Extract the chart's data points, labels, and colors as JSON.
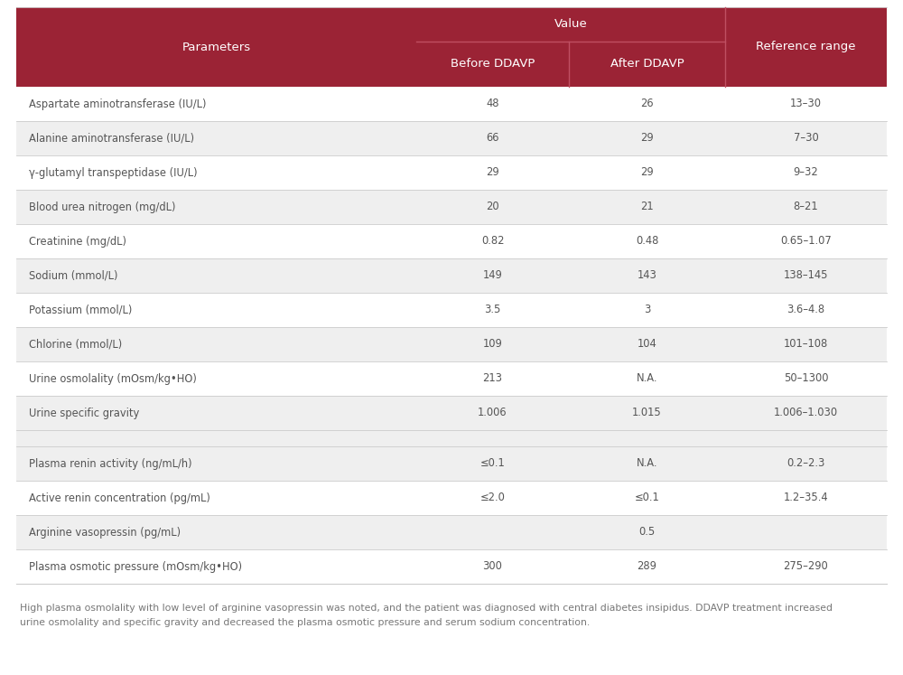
{
  "header_bg": "#9b2335",
  "header_text_color": "#ffffff",
  "row_bg_light": "#efefef",
  "row_bg_white": "#ffffff",
  "separator_color": "#cccccc",
  "text_color": "#555555",
  "footnote_color": "#777777",
  "col1_header": "Parameters",
  "col_value_header": "Value",
  "col2_header": "Before DDAVP",
  "col3_header": "After DDAVP",
  "col4_header": "Reference range",
  "rows": [
    {
      "param": "Aspartate aminotransferase (IU/L)",
      "before": "48",
      "after": "26",
      "ref": "13–30",
      "gap": false
    },
    {
      "param": "Alanine aminotransferase (IU/L)",
      "before": "66",
      "after": "29",
      "ref": "7–30",
      "gap": false
    },
    {
      "param": "γ-glutamyl transpeptidase (IU/L)",
      "before": "29",
      "after": "29",
      "ref": "9–32",
      "gap": false
    },
    {
      "param": "Blood urea nitrogen (mg/dL)",
      "before": "20",
      "after": "21",
      "ref": "8–21",
      "gap": false
    },
    {
      "param": "Creatinine (mg/dL)",
      "before": "0.82",
      "after": "0.48",
      "ref": "0.65–1.07",
      "gap": false
    },
    {
      "param": "Sodium (mmol/L)",
      "before": "149",
      "after": "143",
      "ref": "138–145",
      "gap": false
    },
    {
      "param": "Potassium (mmol/L)",
      "before": "3.5",
      "after": "3",
      "ref": "3.6–4.8",
      "gap": false
    },
    {
      "param": "Chlorine (mmol/L)",
      "before": "109",
      "after": "104",
      "ref": "101–108",
      "gap": false
    },
    {
      "param": "Urine osmolality (mOsm/kg•HO)",
      "before": "213",
      "after": "N.A.",
      "ref": "50–1300",
      "gap": false
    },
    {
      "param": "Urine specific gravity",
      "before": "1.006",
      "after": "1.015",
      "ref": "1.006–1.030",
      "gap": false
    },
    {
      "param": "",
      "before": "",
      "after": "",
      "ref": "",
      "gap": true
    },
    {
      "param": "Plasma renin activity (ng/mL/h)",
      "before": "≤0.1",
      "after": "N.A.",
      "ref": "0.2–2.3",
      "gap": false
    },
    {
      "param": "Active renin concentration (pg/mL)",
      "before": "≤2.0",
      "after": "≤0.1",
      "ref": "1.2–35.4",
      "gap": false
    },
    {
      "param": "Arginine vasopressin (pg/mL)",
      "before": "",
      "after": "0.5",
      "ref": "",
      "gap": false
    },
    {
      "param": "Plasma osmotic pressure (mOsm/kg•HO)",
      "before": "300",
      "after": "289",
      "ref": "275–290",
      "gap": false
    }
  ],
  "footnote_line1": "High plasma osmolality with low level of arginine vasopressin was noted, and the patient was diagnosed with central diabetes insipidus. DDAVP treatment increased",
  "footnote_line2": "urine osmolality and specific gravity and decreased the plasma osmotic pressure and serum sodium concentration.",
  "figure_width": 10.0,
  "figure_height": 7.47
}
